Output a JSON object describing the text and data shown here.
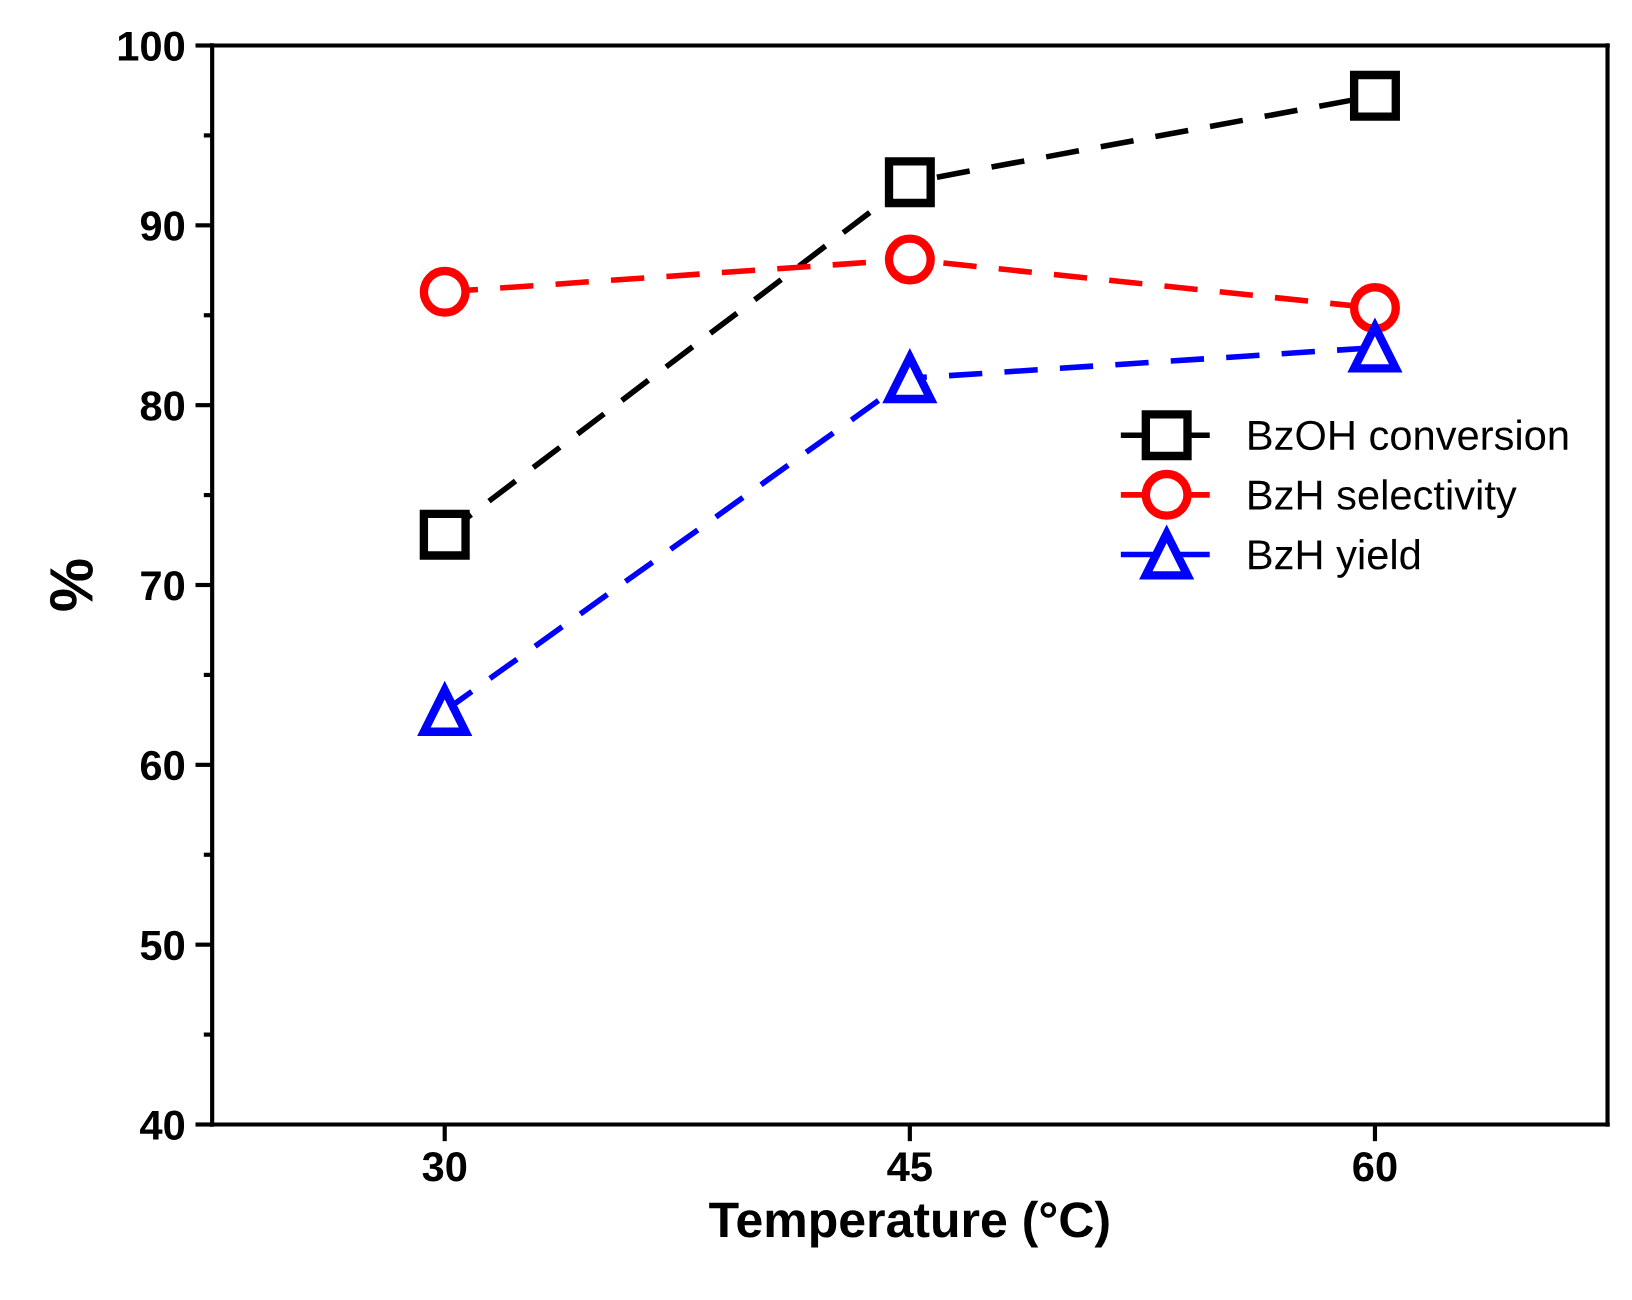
{
  "chart_data": {
    "type": "line",
    "xlabel": "Temperature (°C)",
    "ylabel": "%",
    "x": [
      30,
      45,
      60
    ],
    "series": [
      {
        "name": "BzOH conversion",
        "color": "#000000",
        "marker": "square",
        "values": [
          72.8,
          92.4,
          97.2
        ]
      },
      {
        "name": "BzH selectivity",
        "color": "#ff0000",
        "marker": "circle",
        "values": [
          86.3,
          88.1,
          85.4
        ]
      },
      {
        "name": "BzH yield",
        "color": "#0000ff",
        "marker": "triangle",
        "values": [
          63.0,
          81.5,
          83.2
        ]
      }
    ],
    "line_style": "dashed",
    "xlim": [
      22.5,
      67.5
    ],
    "xticks": [
      30,
      45,
      60
    ],
    "ylim": [
      40,
      100
    ],
    "yticks": [
      40,
      50,
      60,
      70,
      80,
      90,
      100
    ],
    "grid": false,
    "legend": "right"
  }
}
